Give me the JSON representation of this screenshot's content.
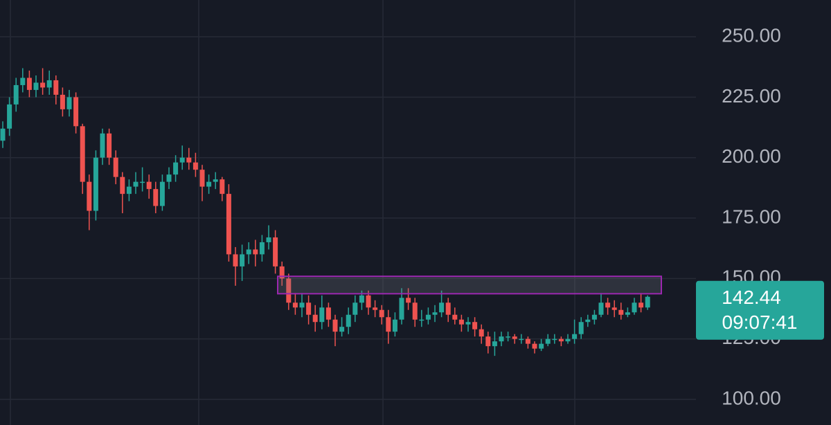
{
  "chart_data": {
    "type": "candlestick",
    "open": [
      207,
      212,
      222,
      230,
      233,
      228,
      231,
      229,
      232,
      226,
      220,
      225,
      213,
      190,
      178,
      200,
      210,
      200,
      192,
      185,
      188,
      190,
      190,
      187,
      180,
      190,
      193,
      198,
      200,
      198,
      195,
      188,
      190,
      191,
      185,
      160,
      155,
      160,
      162,
      160,
      165,
      167,
      155,
      150,
      140,
      138,
      140,
      135,
      132,
      138,
      133,
      128,
      130,
      135,
      140,
      143,
      138,
      137,
      134,
      128,
      133,
      142,
      140,
      133,
      133,
      135,
      136,
      140,
      135,
      133,
      131,
      132,
      129,
      126,
      122,
      124,
      126,
      126,
      125,
      125,
      123,
      121,
      123,
      125,
      125,
      124,
      125,
      127,
      132,
      133,
      135,
      140,
      138,
      137,
      135,
      136,
      140,
      138
    ],
    "high": [
      215,
      225,
      233,
      237,
      236,
      234,
      237,
      236,
      234,
      229,
      228,
      227,
      214,
      193,
      203,
      212,
      212,
      203,
      194,
      191,
      194,
      196,
      193,
      190,
      193,
      196,
      201,
      205,
      204,
      202,
      197,
      193,
      194,
      192,
      189,
      163,
      164,
      165,
      166,
      168,
      172,
      170,
      157,
      152,
      144,
      144,
      143,
      139,
      143,
      140,
      135,
      134,
      138,
      143,
      145,
      145,
      141,
      139,
      137,
      136,
      146,
      146,
      142,
      137,
      138,
      139,
      145,
      142,
      138,
      135,
      134,
      134,
      131,
      128,
      128,
      128,
      128,
      127,
      127,
      126,
      124,
      125,
      127,
      127,
      126,
      127,
      133,
      134,
      135,
      137,
      144,
      142,
      141,
      140,
      138,
      142,
      144,
      143
    ],
    "low": [
      204,
      209,
      219,
      227,
      225,
      225,
      226,
      226,
      222,
      217,
      217,
      210,
      185,
      170,
      174,
      197,
      197,
      189,
      177,
      182,
      185,
      186,
      183,
      177,
      178,
      187,
      190,
      195,
      195,
      192,
      182,
      185,
      187,
      182,
      157,
      147,
      149,
      156,
      155,
      157,
      162,
      152,
      147,
      137,
      135,
      134,
      131,
      128,
      129,
      130,
      122,
      126,
      127,
      132,
      137,
      135,
      134,
      131,
      123,
      126,
      131,
      137,
      130,
      130,
      131,
      132,
      134,
      132,
      131,
      128,
      128,
      126,
      123,
      119,
      118,
      122,
      124,
      123,
      123,
      121,
      119,
      120,
      122,
      123,
      122,
      123,
      123,
      125,
      130,
      131,
      134,
      135,
      134,
      133,
      134,
      135,
      136,
      137
    ],
    "close": [
      212,
      222,
      230,
      233,
      228,
      231,
      229,
      232,
      226,
      220,
      225,
      213,
      190,
      178,
      200,
      210,
      200,
      192,
      185,
      188,
      190,
      190,
      187,
      180,
      190,
      193,
      198,
      200,
      198,
      195,
      188,
      190,
      191,
      185,
      160,
      155,
      160,
      162,
      160,
      165,
      167,
      155,
      150,
      140,
      138,
      140,
      135,
      132,
      138,
      133,
      128,
      130,
      135,
      140,
      143,
      138,
      137,
      134,
      128,
      133,
      142,
      140,
      133,
      133,
      135,
      136,
      140,
      135,
      133,
      131,
      132,
      129,
      126,
      122,
      124,
      126,
      126,
      125,
      125,
      123,
      121,
      123,
      125,
      125,
      124,
      125,
      127,
      132,
      133,
      135,
      140,
      138,
      137,
      135,
      136,
      140,
      138,
      142.44
    ],
    "up_color": "#26a69a",
    "down_color": "#ef5350",
    "ylim": [
      89.4,
      265.2
    ],
    "yticks": [
      {
        "value": 100,
        "label": "100.00"
      },
      {
        "value": 125,
        "label": "125.00"
      },
      {
        "value": 150,
        "label": "150.00"
      },
      {
        "value": 175,
        "label": "175.00"
      },
      {
        "value": 200,
        "label": "200.00"
      },
      {
        "value": 225,
        "label": "225.00"
      },
      {
        "value": 250,
        "label": "250.00"
      }
    ],
    "grid": true,
    "zone": {
      "low": 143.7,
      "high": 150.9,
      "color": "#9c27b0"
    },
    "last_price": {
      "value": 142.44,
      "label": "142.44"
    },
    "countdown": "09:07:41"
  }
}
